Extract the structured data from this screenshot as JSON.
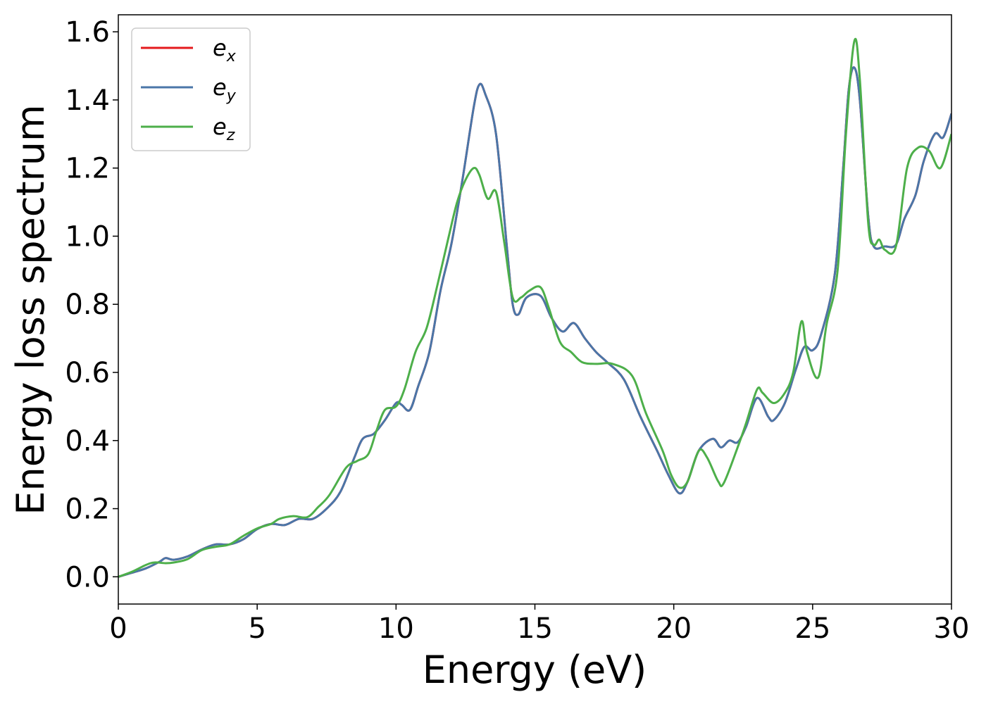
{
  "chart_data": {
    "type": "line",
    "xlabel": "Energy (eV)",
    "ylabel": "Energy loss spectrum",
    "xlim": [
      0,
      30
    ],
    "ylim": [
      -0.08,
      1.65
    ],
    "xticks": [
      0,
      5,
      10,
      15,
      20,
      25,
      30
    ],
    "xtick_labels": [
      "0",
      "5",
      "10",
      "15",
      "20",
      "25",
      "30"
    ],
    "yticks": [
      0.0,
      0.2,
      0.4,
      0.6,
      0.8,
      1.0,
      1.2,
      1.4,
      1.6
    ],
    "ytick_labels": [
      "0.0",
      "0.2",
      "0.4",
      "0.6",
      "0.8",
      "1.0",
      "1.2",
      "1.4",
      "1.6"
    ],
    "grid": false,
    "legend_position": "top-left",
    "series": [
      {
        "name": "e_x",
        "legend_base": "e",
        "legend_sub": "x",
        "color": "#e41a1c",
        "points": [
          [
            0,
            0
          ],
          [
            0.5,
            0.012
          ],
          [
            1,
            0.025
          ],
          [
            1.5,
            0.045
          ],
          [
            1.7,
            0.055
          ],
          [
            2,
            0.05
          ],
          [
            2.5,
            0.06
          ],
          [
            3,
            0.08
          ],
          [
            3.5,
            0.095
          ],
          [
            4,
            0.095
          ],
          [
            4.5,
            0.11
          ],
          [
            5,
            0.14
          ],
          [
            5.5,
            0.155
          ],
          [
            6,
            0.152
          ],
          [
            6.5,
            0.17
          ],
          [
            7,
            0.17
          ],
          [
            7.5,
            0.2
          ],
          [
            8,
            0.25
          ],
          [
            8.5,
            0.35
          ],
          [
            8.8,
            0.405
          ],
          [
            9.2,
            0.42
          ],
          [
            9.6,
            0.46
          ],
          [
            10,
            0.51
          ],
          [
            10.2,
            0.505
          ],
          [
            10.5,
            0.49
          ],
          [
            10.8,
            0.56
          ],
          [
            11.2,
            0.66
          ],
          [
            11.6,
            0.84
          ],
          [
            12,
            0.98
          ],
          [
            12.4,
            1.17
          ],
          [
            12.8,
            1.38
          ],
          [
            13.0,
            1.445
          ],
          [
            13.2,
            1.42
          ],
          [
            13.6,
            1.3
          ],
          [
            14.0,
            0.96
          ],
          [
            14.2,
            0.8
          ],
          [
            14.4,
            0.77
          ],
          [
            14.7,
            0.82
          ],
          [
            15.2,
            0.825
          ],
          [
            15.6,
            0.76
          ],
          [
            16.0,
            0.72
          ],
          [
            16.4,
            0.745
          ],
          [
            16.8,
            0.7
          ],
          [
            17.2,
            0.66
          ],
          [
            17.6,
            0.63
          ],
          [
            18.2,
            0.58
          ],
          [
            18.8,
            0.47
          ],
          [
            19.4,
            0.37
          ],
          [
            19.8,
            0.3
          ],
          [
            20.2,
            0.245
          ],
          [
            20.5,
            0.28
          ],
          [
            20.9,
            0.37
          ],
          [
            21.4,
            0.405
          ],
          [
            21.7,
            0.38
          ],
          [
            22.0,
            0.4
          ],
          [
            22.3,
            0.395
          ],
          [
            22.6,
            0.44
          ],
          [
            23.0,
            0.525
          ],
          [
            23.4,
            0.47
          ],
          [
            23.6,
            0.46
          ],
          [
            24.0,
            0.51
          ],
          [
            24.4,
            0.61
          ],
          [
            24.7,
            0.675
          ],
          [
            25.0,
            0.665
          ],
          [
            25.3,
            0.71
          ],
          [
            25.8,
            0.89
          ],
          [
            26.1,
            1.2
          ],
          [
            26.3,
            1.43
          ],
          [
            26.5,
            1.495
          ],
          [
            26.7,
            1.4
          ],
          [
            27.0,
            1.06
          ],
          [
            27.2,
            0.97
          ],
          [
            27.6,
            0.97
          ],
          [
            28.0,
            0.975
          ],
          [
            28.3,
            1.05
          ],
          [
            28.7,
            1.12
          ],
          [
            29.0,
            1.22
          ],
          [
            29.4,
            1.3
          ],
          [
            29.7,
            1.29
          ],
          [
            30.0,
            1.36
          ]
        ]
      },
      {
        "name": "e_y",
        "legend_base": "e",
        "legend_sub": "y",
        "color": "#4a76a8",
        "points": [
          [
            0,
            0
          ],
          [
            0.5,
            0.012
          ],
          [
            1,
            0.025
          ],
          [
            1.5,
            0.045
          ],
          [
            1.7,
            0.055
          ],
          [
            2,
            0.05
          ],
          [
            2.5,
            0.06
          ],
          [
            3,
            0.08
          ],
          [
            3.5,
            0.095
          ],
          [
            4,
            0.095
          ],
          [
            4.5,
            0.11
          ],
          [
            5,
            0.14
          ],
          [
            5.5,
            0.155
          ],
          [
            6,
            0.152
          ],
          [
            6.5,
            0.17
          ],
          [
            7,
            0.17
          ],
          [
            7.5,
            0.2
          ],
          [
            8,
            0.25
          ],
          [
            8.5,
            0.35
          ],
          [
            8.8,
            0.405
          ],
          [
            9.2,
            0.42
          ],
          [
            9.6,
            0.46
          ],
          [
            10,
            0.51
          ],
          [
            10.2,
            0.505
          ],
          [
            10.5,
            0.49
          ],
          [
            10.8,
            0.56
          ],
          [
            11.2,
            0.66
          ],
          [
            11.6,
            0.84
          ],
          [
            12,
            0.98
          ],
          [
            12.4,
            1.17
          ],
          [
            12.8,
            1.38
          ],
          [
            13.0,
            1.445
          ],
          [
            13.2,
            1.42
          ],
          [
            13.6,
            1.3
          ],
          [
            14.0,
            0.96
          ],
          [
            14.2,
            0.8
          ],
          [
            14.4,
            0.77
          ],
          [
            14.7,
            0.82
          ],
          [
            15.2,
            0.825
          ],
          [
            15.6,
            0.76
          ],
          [
            16.0,
            0.72
          ],
          [
            16.4,
            0.745
          ],
          [
            16.8,
            0.7
          ],
          [
            17.2,
            0.66
          ],
          [
            17.6,
            0.63
          ],
          [
            18.2,
            0.58
          ],
          [
            18.8,
            0.47
          ],
          [
            19.4,
            0.37
          ],
          [
            19.8,
            0.3
          ],
          [
            20.2,
            0.245
          ],
          [
            20.5,
            0.28
          ],
          [
            20.9,
            0.37
          ],
          [
            21.4,
            0.405
          ],
          [
            21.7,
            0.38
          ],
          [
            22.0,
            0.4
          ],
          [
            22.3,
            0.395
          ],
          [
            22.6,
            0.44
          ],
          [
            23.0,
            0.525
          ],
          [
            23.4,
            0.47
          ],
          [
            23.6,
            0.46
          ],
          [
            24.0,
            0.51
          ],
          [
            24.4,
            0.61
          ],
          [
            24.7,
            0.675
          ],
          [
            25.0,
            0.665
          ],
          [
            25.3,
            0.71
          ],
          [
            25.8,
            0.89
          ],
          [
            26.1,
            1.2
          ],
          [
            26.3,
            1.43
          ],
          [
            26.5,
            1.495
          ],
          [
            26.7,
            1.4
          ],
          [
            27.0,
            1.06
          ],
          [
            27.2,
            0.97
          ],
          [
            27.6,
            0.97
          ],
          [
            28.0,
            0.975
          ],
          [
            28.3,
            1.05
          ],
          [
            28.7,
            1.12
          ],
          [
            29.0,
            1.22
          ],
          [
            29.4,
            1.3
          ],
          [
            29.7,
            1.29
          ],
          [
            30.0,
            1.36
          ]
        ]
      },
      {
        "name": "e_z",
        "legend_base": "e",
        "legend_sub": "z",
        "color": "#4daf4a",
        "points": [
          [
            0,
            0
          ],
          [
            0.5,
            0.015
          ],
          [
            1,
            0.035
          ],
          [
            1.3,
            0.042
          ],
          [
            1.7,
            0.04
          ],
          [
            2,
            0.042
          ],
          [
            2.5,
            0.052
          ],
          [
            3,
            0.078
          ],
          [
            3.5,
            0.088
          ],
          [
            4,
            0.095
          ],
          [
            4.5,
            0.12
          ],
          [
            5,
            0.142
          ],
          [
            5.5,
            0.155
          ],
          [
            5.8,
            0.17
          ],
          [
            6.3,
            0.178
          ],
          [
            6.8,
            0.175
          ],
          [
            7.2,
            0.205
          ],
          [
            7.6,
            0.24
          ],
          [
            8.2,
            0.32
          ],
          [
            8.6,
            0.34
          ],
          [
            9.0,
            0.36
          ],
          [
            9.3,
            0.43
          ],
          [
            9.6,
            0.49
          ],
          [
            10,
            0.5
          ],
          [
            10.3,
            0.55
          ],
          [
            10.7,
            0.66
          ],
          [
            11.1,
            0.73
          ],
          [
            11.5,
            0.86
          ],
          [
            11.9,
            1.0
          ],
          [
            12.2,
            1.1
          ],
          [
            12.5,
            1.165
          ],
          [
            12.8,
            1.2
          ],
          [
            13.0,
            1.18
          ],
          [
            13.3,
            1.11
          ],
          [
            13.6,
            1.13
          ],
          [
            13.9,
            0.98
          ],
          [
            14.2,
            0.82
          ],
          [
            14.5,
            0.82
          ],
          [
            14.8,
            0.84
          ],
          [
            15.2,
            0.85
          ],
          [
            15.5,
            0.79
          ],
          [
            15.9,
            0.69
          ],
          [
            16.3,
            0.66
          ],
          [
            16.7,
            0.63
          ],
          [
            17.2,
            0.625
          ],
          [
            17.8,
            0.625
          ],
          [
            18.5,
            0.59
          ],
          [
            19.0,
            0.48
          ],
          [
            19.6,
            0.37
          ],
          [
            19.9,
            0.3
          ],
          [
            20.2,
            0.262
          ],
          [
            20.5,
            0.28
          ],
          [
            20.9,
            0.37
          ],
          [
            21.2,
            0.35
          ],
          [
            21.6,
            0.28
          ],
          [
            21.8,
            0.275
          ],
          [
            22.3,
            0.38
          ],
          [
            22.6,
            0.45
          ],
          [
            23.0,
            0.55
          ],
          [
            23.2,
            0.54
          ],
          [
            23.6,
            0.51
          ],
          [
            24.0,
            0.54
          ],
          [
            24.3,
            0.6
          ],
          [
            24.6,
            0.75
          ],
          [
            24.8,
            0.66
          ],
          [
            25.2,
            0.585
          ],
          [
            25.5,
            0.74
          ],
          [
            25.9,
            0.9
          ],
          [
            26.2,
            1.3
          ],
          [
            26.5,
            1.572
          ],
          [
            26.7,
            1.46
          ],
          [
            27.0,
            1.04
          ],
          [
            27.2,
            0.975
          ],
          [
            27.4,
            0.99
          ],
          [
            27.6,
            0.96
          ],
          [
            28.0,
            0.97
          ],
          [
            28.4,
            1.2
          ],
          [
            28.8,
            1.26
          ],
          [
            29.2,
            1.25
          ],
          [
            29.6,
            1.2
          ],
          [
            30.0,
            1.3
          ]
        ]
      }
    ]
  }
}
